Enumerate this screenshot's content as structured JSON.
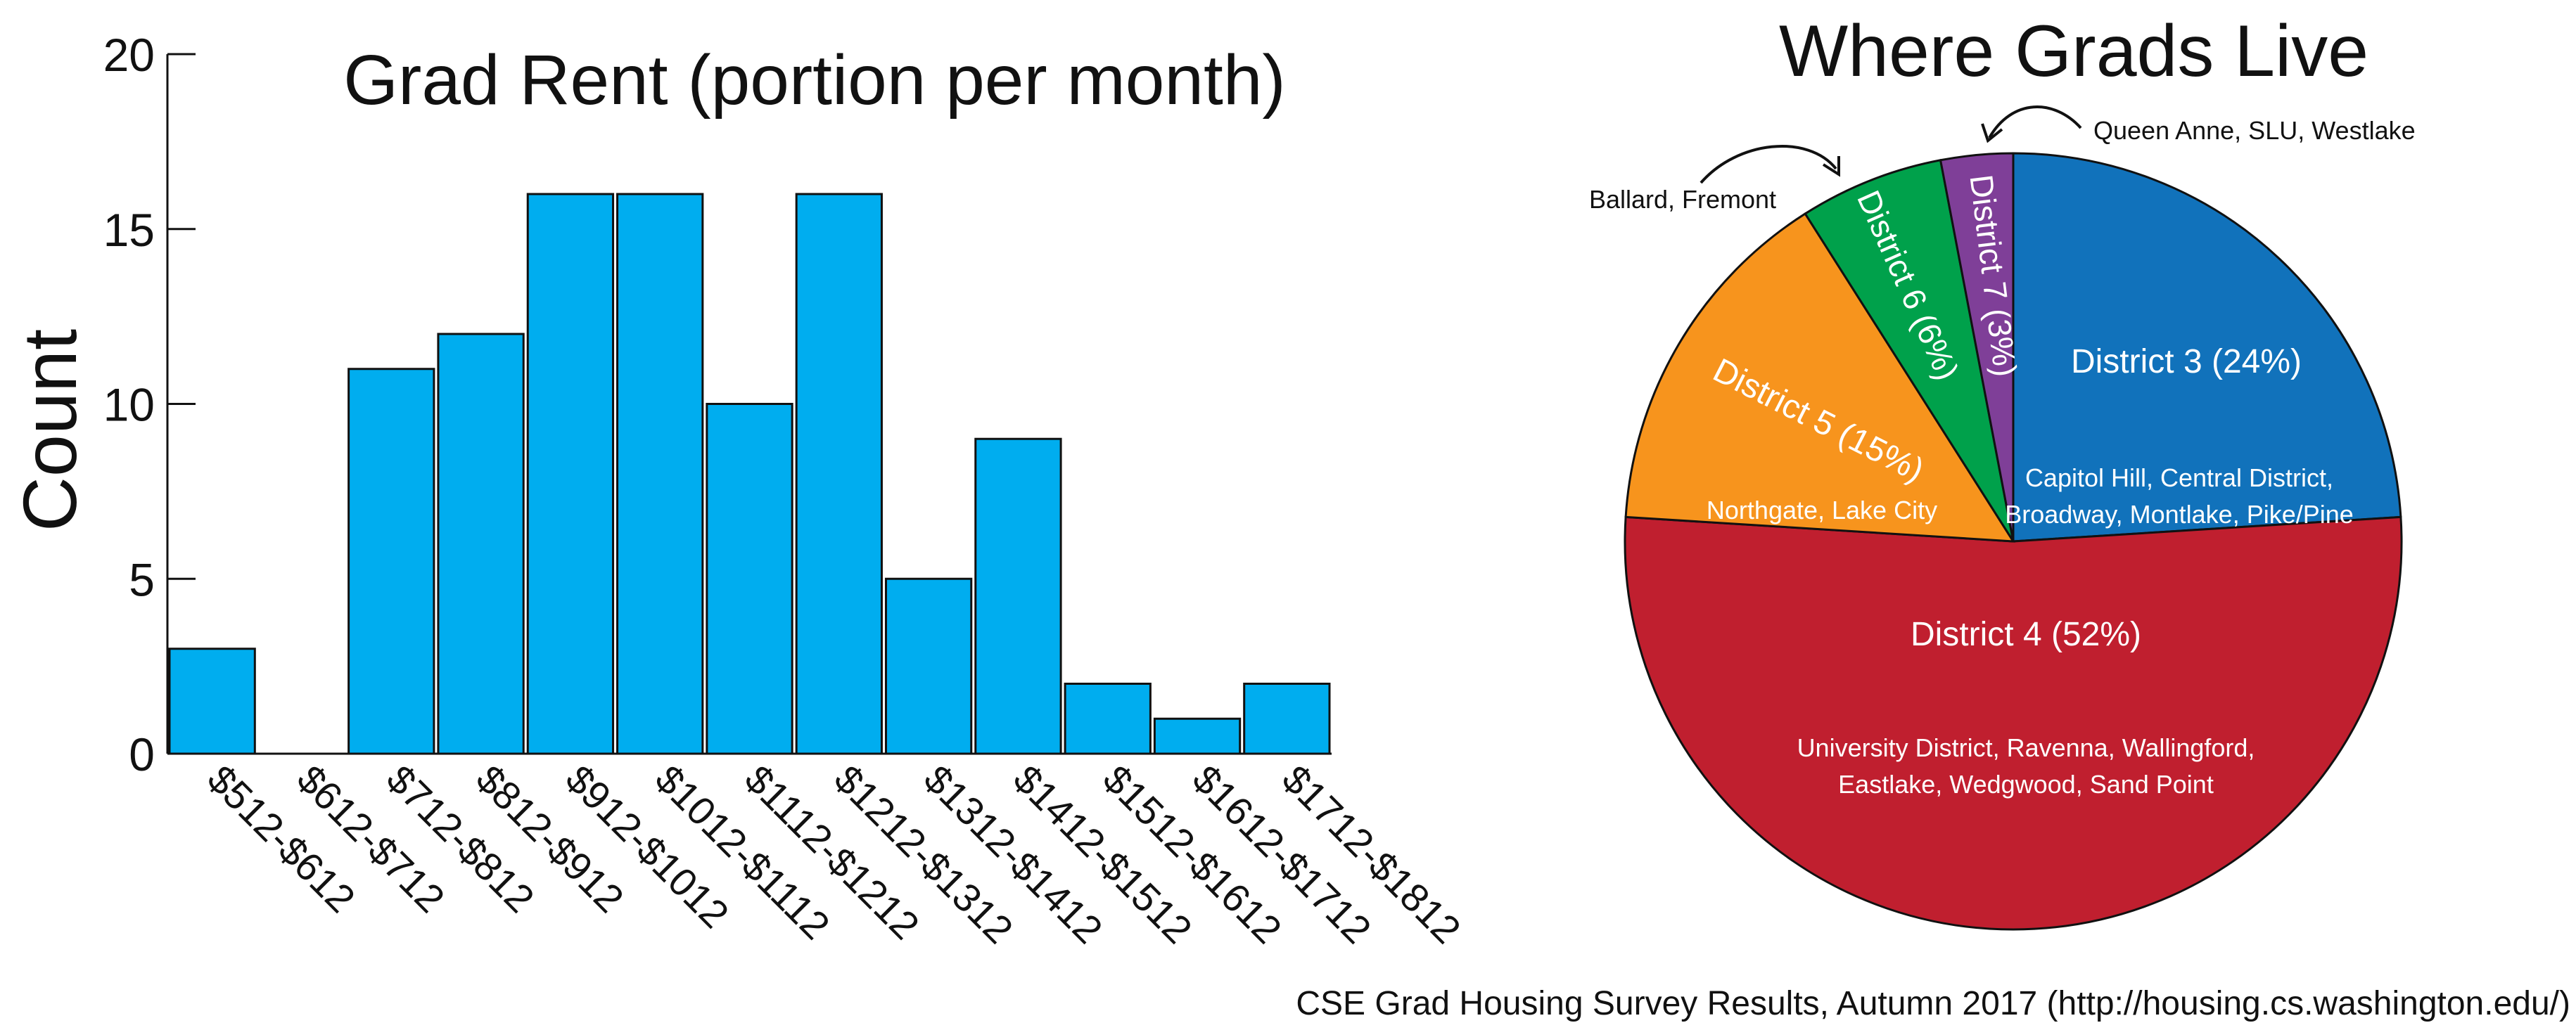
{
  "chart_data": [
    {
      "type": "bar",
      "title": "Grad Rent (portion per month)",
      "xlabel": "",
      "ylabel": "Count",
      "ylim": [
        0,
        20
      ],
      "yticks": [
        0,
        5,
        10,
        15,
        20
      ],
      "categories": [
        "$512-$612",
        "$612-$712",
        "$712-$812",
        "$812-$912",
        "$912-$1012",
        "$1012-$1112",
        "$1112-$1212",
        "$1212-$1312",
        "$1312-$1412",
        "$1412-$1512",
        "$1512-$1612",
        "$1612-$1712",
        "$1712-$1812"
      ],
      "values": [
        3,
        0,
        11,
        12,
        16,
        16,
        10,
        16,
        5,
        9,
        2,
        1,
        2
      ],
      "bar_color": "#00adef",
      "grid": false
    },
    {
      "type": "pie",
      "title": "Where Grads Live",
      "slices": [
        {
          "label": "District 3 (24%)",
          "value": 24,
          "color": "#1172bb",
          "neighborhoods": [
            "Capitol Hill, Central District,",
            "Broadway, Montlake, Pike/Pine"
          ]
        },
        {
          "label": "District 4 (52%)",
          "value": 52,
          "color": "#c01f2f",
          "neighborhoods": [
            "University District, Ravenna, Wallingford,",
            "Eastlake, Wedgwood, Sand Point"
          ]
        },
        {
          "label": "District 5 (15%)",
          "value": 15,
          "color": "#f7941d",
          "neighborhoods": [
            "Northgate, Lake City"
          ]
        },
        {
          "label": "District 6 (6%)",
          "value": 6,
          "color": "#00a14b",
          "neighborhoods": [
            "Ballard, Fremont"
          ]
        },
        {
          "label": "District 7 (3%)",
          "value": 3,
          "color": "#7f3f98",
          "neighborhoods": [
            "Queen Anne, SLU, Westlake"
          ]
        }
      ]
    }
  ],
  "footer": "CSE Grad Housing Survey Results, Autumn 2017 (http://housing.cs.washington.edu/)"
}
